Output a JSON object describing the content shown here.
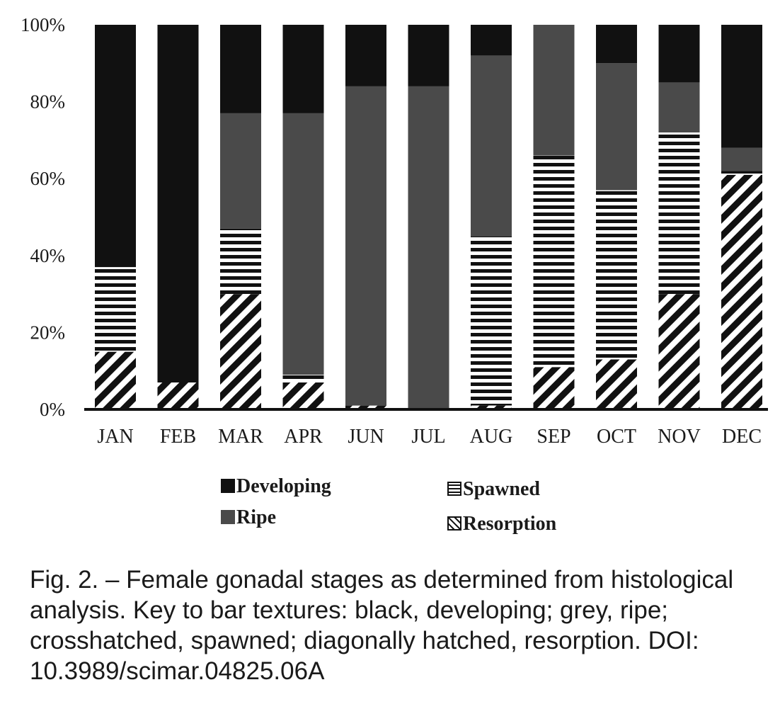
{
  "chart_data": {
    "type": "bar",
    "stacked": true,
    "percent": true,
    "categories": [
      "JAN",
      "FEB",
      "MAR",
      "APR",
      "JUN",
      "JUL",
      "AUG",
      "SEP",
      "OCT",
      "NOV",
      "DEC"
    ],
    "y_ticks": [
      "0%",
      "20%",
      "40%",
      "60%",
      "80%",
      "100%"
    ],
    "ylim": [
      0,
      100
    ],
    "grid": false,
    "legend_position": "bottom",
    "stack_order_bottom_to_top": [
      "Resorption",
      "Spawned",
      "Ripe",
      "Developing"
    ],
    "series": [
      {
        "name": "Resorption",
        "color": "#111111",
        "pattern": "diagonal-hatch",
        "values": [
          15,
          7,
          30,
          7,
          1,
          0,
          1,
          11,
          13,
          30,
          61
        ]
      },
      {
        "name": "Spawned",
        "color": "#111111",
        "pattern": "horizontal-hatch",
        "values": [
          22,
          0,
          17,
          2,
          0,
          0,
          44,
          55,
          44,
          42,
          1
        ]
      },
      {
        "name": "Ripe",
        "color": "#4a4a4a",
        "pattern": "solid",
        "values": [
          0,
          0,
          30,
          68,
          83,
          84,
          47,
          34,
          33,
          13,
          6
        ]
      },
      {
        "name": "Developing",
        "color": "#111111",
        "pattern": "solid",
        "values": [
          63,
          93,
          23,
          23,
          16,
          16,
          8,
          0,
          10,
          15,
          32
        ]
      }
    ],
    "legend": [
      {
        "name": "Developing",
        "pattern": "solid-black"
      },
      {
        "name": "Spawned",
        "pattern": "horizontal-hatch"
      },
      {
        "name": "Ripe",
        "pattern": "solid-grey"
      },
      {
        "name": "Resorption",
        "pattern": "diagonal-hatch"
      }
    ]
  },
  "caption": "Fig. 2. – Female gonadal stages as determined from histological analysis. Key to bar textures: black, developing; grey, ripe; crosshatched, spawned; diagonally hatched, resorption. DOI: 10.3989/scimar.04825.06A"
}
